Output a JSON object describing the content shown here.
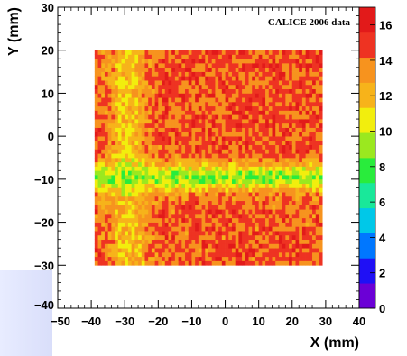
{
  "chart_data": {
    "type": "heatmap",
    "title": "",
    "annotation": "CALICE 2006 data",
    "xlabel": "X (mm)",
    "ylabel": "Y (mm)",
    "xlim": [
      -50,
      40
    ],
    "ylim": [
      -40,
      30
    ],
    "x_ticks": [
      -50,
      -40,
      -30,
      -20,
      -10,
      0,
      10,
      20,
      30,
      40
    ],
    "y_ticks": [
      -40,
      -30,
      -20,
      -10,
      0,
      10,
      20,
      30
    ],
    "colorbar": {
      "range": [
        0,
        17
      ],
      "ticks": [
        0,
        2,
        4,
        6,
        8,
        10,
        12,
        14,
        16
      ],
      "palette": [
        "#6b00d6",
        "#1f10f5",
        "#0077ff",
        "#00c8e8",
        "#19e89a",
        "#29ec3c",
        "#9be81f",
        "#f2ee0d",
        "#f7b31a",
        "#f7931e",
        "#ee3322",
        "#e21a1a"
      ]
    },
    "data_region": {
      "x": [
        -39,
        29
      ],
      "y": [
        -30,
        20
      ]
    },
    "bin_size_mm": 1,
    "description_levels": {
      "top_bulk": 14.5,
      "bottom_bulk": 14.3,
      "central_horizontal_gap": 9,
      "left_vertical_gap": 11.5
    }
  }
}
